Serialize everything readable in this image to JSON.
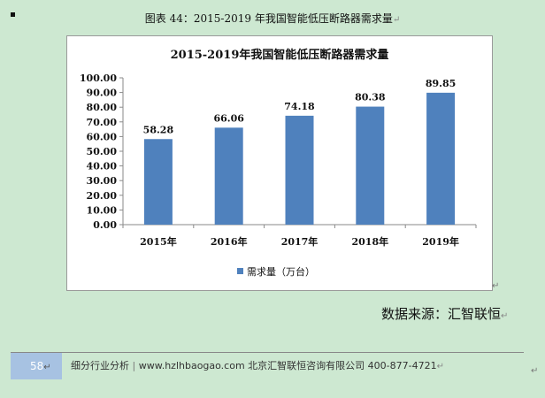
{
  "caption": {
    "text": "图表 44：2015-2019 年我国智能低压断路器需求量",
    "mark": "↵"
  },
  "chart_data": {
    "type": "bar",
    "title": "2015-2019年我国智能低压断路器需求量",
    "categories": [
      "2015年",
      "2016年",
      "2017年",
      "2018年",
      "2019年"
    ],
    "series": [
      {
        "name": "需求量（万台）",
        "values": [
          58.28,
          66.06,
          74.18,
          80.38,
          89.85
        ]
      }
    ],
    "data_labels": [
      "58.28",
      "66.06",
      "74.18",
      "80.38",
      "89.85"
    ],
    "y_ticks": [
      "0.00",
      "10.00",
      "20.00",
      "30.00",
      "40.00",
      "50.00",
      "60.00",
      "70.00",
      "80.00",
      "90.00",
      "100.00"
    ],
    "ylim": [
      0,
      100
    ],
    "grid": false,
    "legend_position": "bottom",
    "bar_color": "#4f81bd"
  },
  "chart_mark": "↵",
  "source": {
    "text": "数据来源：汇智联恒",
    "mark": "↵"
  },
  "footer": {
    "page_number": "58",
    "page_mark": "↵",
    "label": "细分行业分析",
    "separator": "|",
    "text": "www.hzlhbaogao.com 北京汇智联恒咨询有限公司   400-877-4721",
    "mark": "↵"
  },
  "corner_mark": "↵"
}
